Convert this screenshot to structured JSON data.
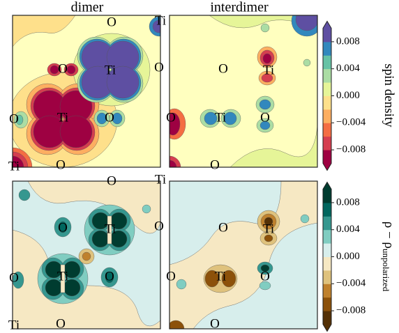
{
  "chart_data": [
    {
      "type": "contour",
      "titles": [
        "dimer",
        "interdimer"
      ],
      "colorbar": {
        "label": "spin density",
        "lim": [
          -0.01,
          0.01
        ],
        "ticks": [
          {
            "value": -0.008,
            "label": "−0.008"
          },
          {
            "value": -0.004,
            "label": "−0.004"
          },
          {
            "value": 0,
            "label": "0.000"
          },
          0.004,
          0.008
        ],
        "colors": [
          "#9e0142",
          "#d53e4f",
          "#f46d43",
          "#fdae61",
          "#fee08b",
          "#e6f598",
          "#abdda4",
          "#66c2a5",
          "#3288bd",
          "#5e4fa2"
        ]
      },
      "atoms": [
        [
          "O",
          "Ti",
          "O",
          "Ti",
          "O",
          "O",
          "Ti",
          "O",
          "Ti",
          "O"
        ],
        [
          "O",
          "Ti",
          "O",
          "Ti",
          "O",
          "O"
        ]
      ]
    },
    {
      "type": "contour",
      "colorbar": {
        "label": "ρ − ρ",
        "label_sub": "unpolarized",
        "lim": [
          -0.01,
          0.01
        ],
        "ticks": [
          {
            "value": -0.008,
            "label": "−0.008"
          },
          {
            "value": -0.004,
            "label": "−0.004"
          },
          {
            "value": 0,
            "label": "0.000"
          },
          0.004,
          0.008
        ],
        "colors": [
          "#543005",
          "#8c510a",
          "#bf812d",
          "#dfc27d",
          "#f6e8c3",
          "#d7eeec",
          "#80cdc1",
          "#35978f",
          "#01665e",
          "#003c30"
        ]
      },
      "atoms": [
        [
          "O",
          "Ti",
          "O",
          "Ti",
          "O",
          "O",
          "Ti",
          "O",
          "Ti",
          "O"
        ],
        [
          "O",
          "Ti",
          "O",
          "Ti",
          "O",
          "O"
        ]
      ]
    }
  ]
}
